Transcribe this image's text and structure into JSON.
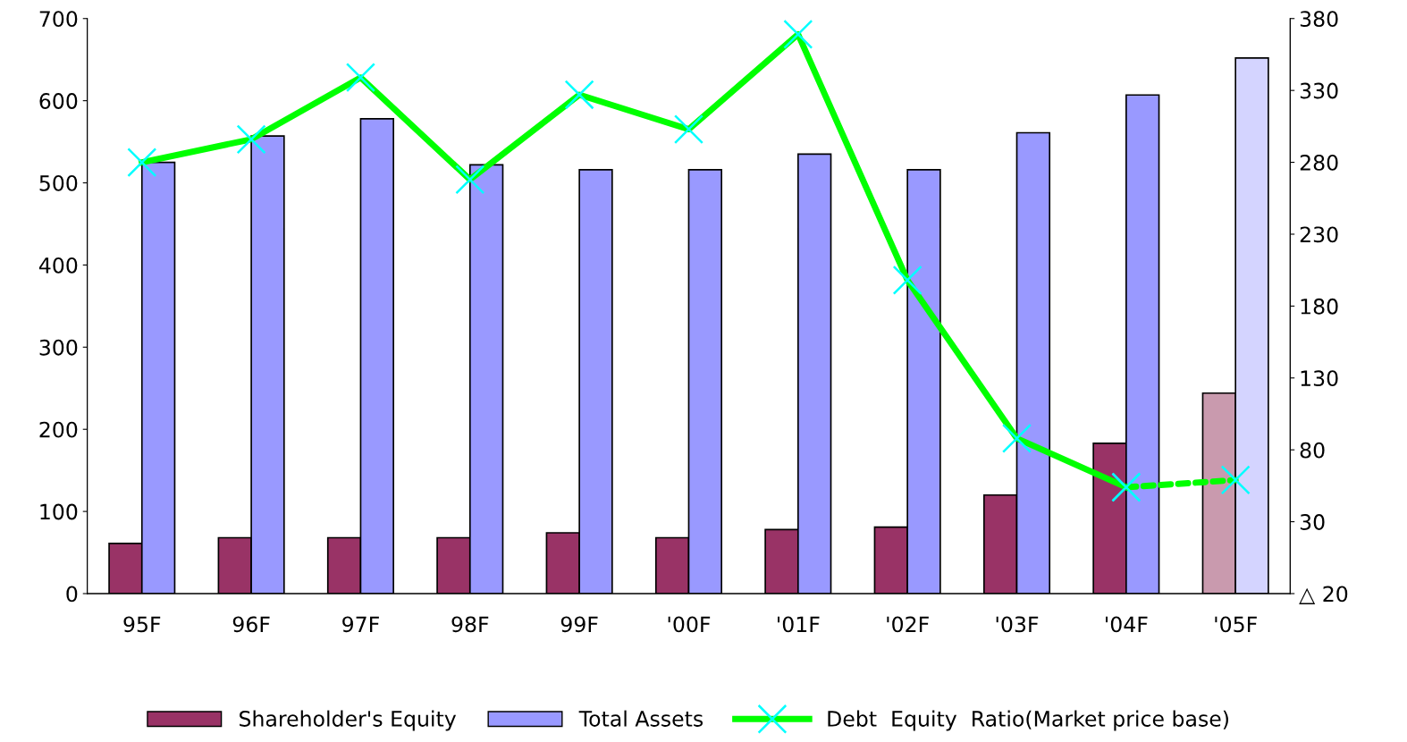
{
  "chart_data": {
    "type": "bar",
    "categories": [
      "95F",
      "96F",
      "97F",
      "98F",
      "99F",
      "'00F",
      "'01F",
      "'02F",
      "'03F",
      "'04F",
      "'05F"
    ],
    "series": [
      {
        "name": "Shareholder's Equity",
        "color": "#993366",
        "colors": [
          "#993366",
          "#993366",
          "#993366",
          "#993366",
          "#993366",
          "#993366",
          "#993366",
          "#993366",
          "#993366",
          "#993366",
          "#c99aae"
        ],
        "values": [
          61,
          68,
          68,
          68,
          74,
          68,
          78,
          81,
          120,
          183,
          244
        ]
      },
      {
        "name": "Total Assets",
        "color": "#9999ff",
        "colors": [
          "#9999ff",
          "#9999ff",
          "#9999ff",
          "#9999ff",
          "#9999ff",
          "#9999ff",
          "#9999ff",
          "#9999ff",
          "#9999ff",
          "#9999ff",
          "#d4d4ff"
        ],
        "values": [
          525,
          557,
          578,
          522,
          516,
          516,
          535,
          516,
          561,
          607,
          652
        ]
      },
      {
        "name": "Debt  Equity  Ratio(Market price base)",
        "type": "line",
        "axis": "y2",
        "color": "#00ff00",
        "line_style": "solid",
        "values": [
          280,
          296,
          339,
          268,
          327,
          303,
          369,
          198,
          88,
          54,
          null
        ]
      },
      {
        "type": "line",
        "axis": "y2",
        "color": "#00ff00",
        "line_style": "dashed",
        "values": [
          null,
          null,
          null,
          null,
          null,
          null,
          null,
          null,
          null,
          54,
          59
        ]
      }
    ],
    "ylim": [
      0,
      700
    ],
    "yticks": [
      0,
      100,
      200,
      300,
      400,
      500,
      600,
      700
    ],
    "y2lim": [
      -20,
      380
    ],
    "y2ticks": [
      {
        "value": -20,
        "label": "△ 20"
      },
      30,
      80,
      130,
      180,
      230,
      280,
      330,
      380
    ],
    "marker": "cross",
    "grid": false,
    "legend": "bottom"
  }
}
